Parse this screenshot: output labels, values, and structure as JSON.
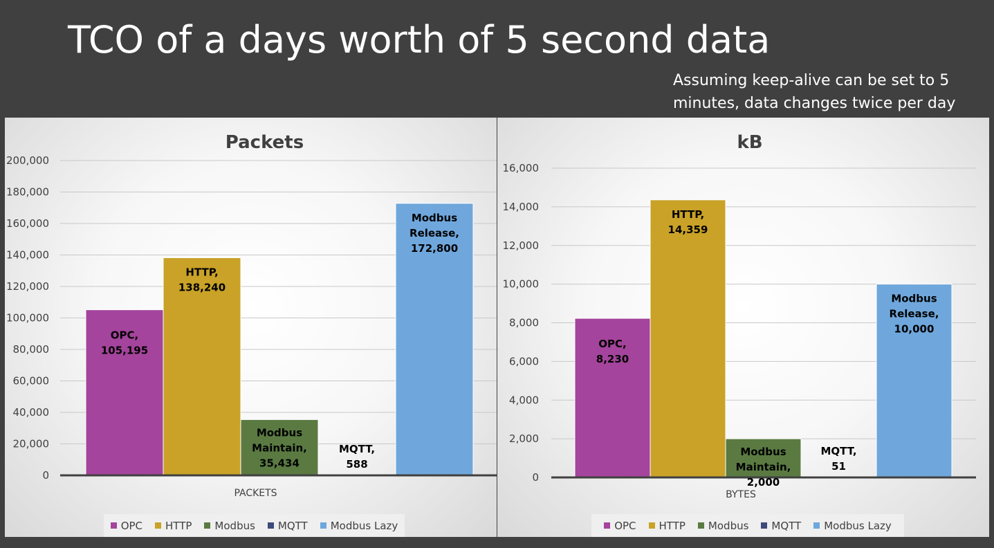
{
  "slide": {
    "title": "TCO of a days worth of 5 second data",
    "subtitle": "Assuming keep-alive can be set to 5 minutes, data changes twice per day"
  },
  "legend": [
    {
      "name": "OPC",
      "color": "#A4449C"
    },
    {
      "name": "HTTP",
      "color": "#C9A227"
    },
    {
      "name": "Modbus",
      "color": "#5A7A42"
    },
    {
      "name": "MQTT",
      "color": "#3D4A7A"
    },
    {
      "name": "Modbus Lazy",
      "color": "#6FA7DC"
    }
  ],
  "chart_data": [
    {
      "type": "bar",
      "title": "Packets",
      "xlabel": "PACKETS",
      "ylim": [
        0,
        200000
      ],
      "yticks": [
        "0",
        "20,000",
        "40,000",
        "60,000",
        "80,000",
        "100,000",
        "120,000",
        "140,000",
        "160,000",
        "180,000",
        "200,000"
      ],
      "grid": true,
      "legend_position": "bottom",
      "bars": [
        {
          "value": 105195,
          "color": "#A4449C",
          "label": [
            "OPC,",
            "105,195"
          ]
        },
        {
          "value": 138240,
          "color": "#C9A227",
          "label": [
            "HTTP,",
            "138,240"
          ]
        },
        {
          "value": 35434,
          "color": "#5A7A42",
          "label": [
            "Modbus",
            "Maintain,",
            "35,434"
          ]
        },
        {
          "value": 588,
          "color": "#3D4A7A",
          "label": [
            "MQTT,",
            "588"
          ]
        },
        {
          "value": 172800,
          "color": "#6FA7DC",
          "label": [
            "Modbus",
            "Release,",
            "172,800"
          ]
        }
      ]
    },
    {
      "type": "bar",
      "title": "kB",
      "xlabel": "BYTES",
      "ylim": [
        0,
        16000
      ],
      "yticks": [
        "0",
        "2,000",
        "4,000",
        "6,000",
        "8,000",
        "10,000",
        "12,000",
        "14,000",
        "16,000"
      ],
      "grid": true,
      "legend_position": "bottom",
      "bars": [
        {
          "value": 8230,
          "color": "#A4449C",
          "label": [
            "OPC,",
            "8,230"
          ]
        },
        {
          "value": 14359,
          "color": "#C9A227",
          "label": [
            "HTTP,",
            "14,359"
          ]
        },
        {
          "value": 2000,
          "color": "#5A7A42",
          "label": [
            "Modbus",
            "Maintain,",
            "2,000"
          ]
        },
        {
          "value": 51,
          "color": "#3D4A7A",
          "label": [
            "MQTT,",
            "51"
          ]
        },
        {
          "value": 10000,
          "color": "#6FA7DC",
          "label": [
            "Modbus",
            "Release,",
            "10,000"
          ]
        }
      ]
    }
  ]
}
